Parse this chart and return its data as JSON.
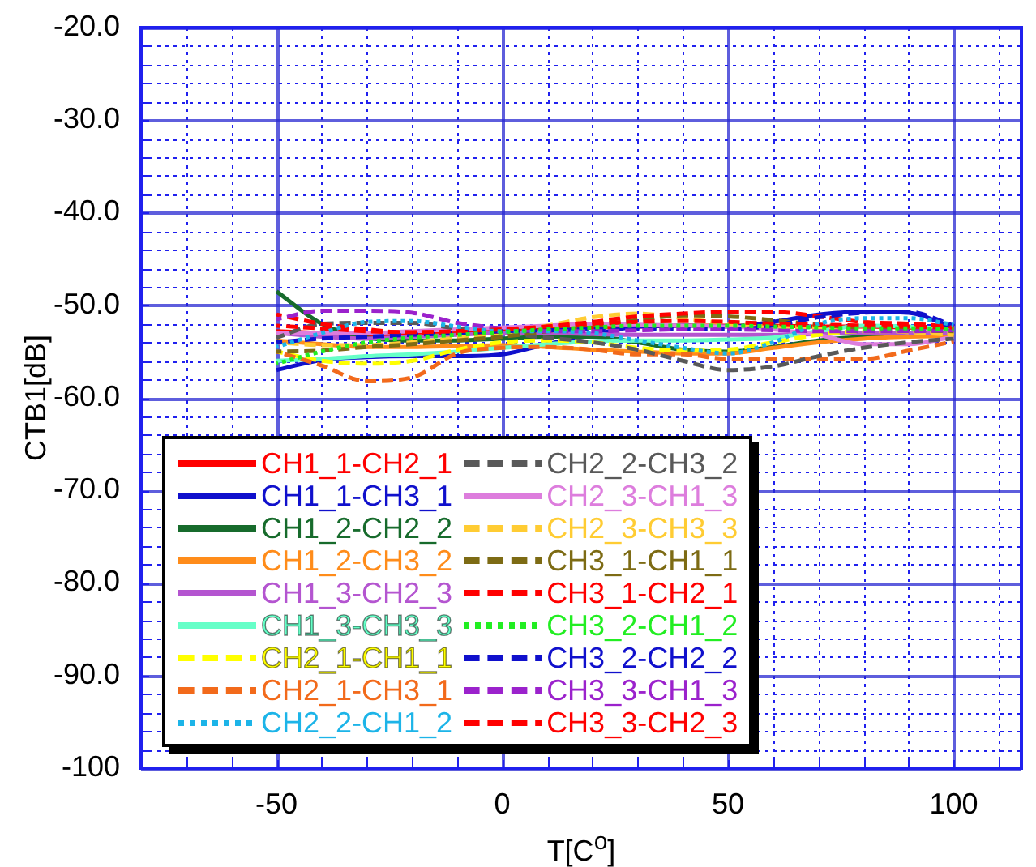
{
  "chart_data": {
    "type": "line",
    "xlabel": "T[C$^{o}$]",
    "ylabel": "CTB1[dB]",
    "x": [
      -50,
      -40,
      -30,
      -20,
      -10,
      0,
      10,
      20,
      30,
      40,
      50,
      60,
      70,
      80,
      90,
      100
    ],
    "xlim": [
      -80,
      115
    ],
    "xticks": [
      {
        "value": -70,
        "label": null
      },
      {
        "value": -60,
        "label": null
      },
      -50,
      {
        "value": -40,
        "label": null
      },
      {
        "value": -30,
        "label": null
      },
      {
        "value": -20,
        "label": null
      },
      {
        "value": -10,
        "label": null
      },
      0,
      {
        "value": 10,
        "label": null
      },
      {
        "value": 20,
        "label": null
      },
      {
        "value": 30,
        "label": null
      },
      {
        "value": 40,
        "label": null
      },
      50,
      {
        "value": 60,
        "label": null
      },
      {
        "value": 70,
        "label": null
      },
      {
        "value": 80,
        "label": null
      },
      {
        "value": 90,
        "label": null
      },
      100,
      {
        "value": 110,
        "label": null
      }
    ],
    "ylim": [
      -100,
      -20
    ],
    "yticks": [
      -100,
      {
        "value": -98,
        "label": null
      },
      {
        "value": -96,
        "label": null
      },
      {
        "value": -94,
        "label": null
      },
      {
        "value": -92,
        "label": null
      },
      {
        "value": -90,
        "label": "-90.0"
      },
      {
        "value": -88,
        "label": null
      },
      {
        "value": -86,
        "label": null
      },
      {
        "value": -84,
        "label": null
      },
      {
        "value": -82,
        "label": null
      },
      {
        "value": -80,
        "label": "-80.0"
      },
      {
        "value": -78,
        "label": null
      },
      {
        "value": -76,
        "label": null
      },
      {
        "value": -74,
        "label": null
      },
      {
        "value": -72,
        "label": null
      },
      {
        "value": -70,
        "label": "-70.0"
      },
      {
        "value": -68,
        "label": null
      },
      {
        "value": -66,
        "label": null
      },
      {
        "value": -64,
        "label": null
      },
      {
        "value": -62,
        "label": null
      },
      {
        "value": -60,
        "label": "-60.0"
      },
      {
        "value": -58,
        "label": null
      },
      {
        "value": -56,
        "label": null
      },
      {
        "value": -54,
        "label": null
      },
      {
        "value": -52,
        "label": null
      },
      {
        "value": -50,
        "label": "-50.0"
      },
      {
        "value": -48,
        "label": null
      },
      {
        "value": -46,
        "label": null
      },
      {
        "value": -44,
        "label": null
      },
      {
        "value": -42,
        "label": null
      },
      {
        "value": -40,
        "label": "-40.0"
      },
      {
        "value": -38,
        "label": null
      },
      {
        "value": -36,
        "label": null
      },
      {
        "value": -34,
        "label": null
      },
      {
        "value": -32,
        "label": null
      },
      {
        "value": -30,
        "label": "-30.0"
      },
      {
        "value": -28,
        "label": null
      },
      {
        "value": -26,
        "label": null
      },
      {
        "value": -24,
        "label": null
      },
      {
        "value": -22,
        "label": null
      },
      {
        "value": -20,
        "label": "-20.0"
      }
    ],
    "grid": true,
    "legend": "bottom left",
    "series": [
      {
        "name": "CH1_1-CH2_1",
        "color": "#ff0000",
        "line_style": "solid",
        "values": [
          -52.8,
          -53.0,
          -53.2,
          -53.2,
          -53.0,
          -52.8,
          -52.6,
          -52.4,
          -52.3,
          -52.2,
          -52.2,
          -52.2,
          -52.3,
          -52.3,
          -52.4,
          -52.5
        ]
      },
      {
        "name": "CH1_1-CH3_1",
        "color": "#1010cc",
        "line_style": "solid",
        "values": [
          -57.0,
          -55.9,
          -55.6,
          -55.5,
          -55.5,
          -55.3,
          -54.2,
          -53.2,
          -52.3,
          -52.2,
          -52.3,
          -51.8,
          -51.0,
          -50.7,
          -50.8,
          -52.5
        ]
      },
      {
        "name": "CH1_2-CH2_2",
        "color": "#176b2c",
        "line_style": "solid",
        "values": [
          -48.5,
          -52.0,
          -53.5,
          -53.8,
          -53.8,
          -53.6,
          -53.4,
          -53.4,
          -54.0,
          -54.8,
          -55.0,
          -54.5,
          -53.8,
          -53.4,
          -53.2,
          -53.2
        ]
      },
      {
        "name": "CH1_2-CH3_2",
        "color": "#ff8c1a",
        "line_style": "solid",
        "values": [
          -53.8,
          -54.2,
          -54.5,
          -54.5,
          -54.4,
          -54.3,
          -54.5,
          -54.8,
          -55.0,
          -55.2,
          -55.2,
          -54.6,
          -54.0,
          -53.6,
          -53.4,
          -53.3
        ]
      },
      {
        "name": "CH1_3-CH2_3",
        "color": "#b455d0",
        "line_style": "solid",
        "values": [
          -53.0,
          -53.4,
          -53.6,
          -53.4,
          -53.2,
          -53.0,
          -53.0,
          -53.1,
          -53.2,
          -53.2,
          -53.2,
          -53.2,
          -53.1,
          -53.0,
          -53.0,
          -53.0
        ]
      },
      {
        "name": "CH1_3-CH3_3",
        "color": "#66ffc8",
        "line_style": "solid",
        "values": [
          -56.0,
          -55.8,
          -55.5,
          -55.3,
          -55.0,
          -54.6,
          -54.2,
          -53.9,
          -53.8,
          -53.8,
          -53.7,
          -53.5,
          -52.8,
          -52.2,
          -52.3,
          -52.6
        ]
      },
      {
        "name": "CH2_1-CH1_1",
        "color": "#ffff00",
        "line_style": "dashed",
        "values": [
          -55.0,
          -56.0,
          -56.3,
          -56.0,
          -54.8,
          -54.0,
          -53.8,
          -54.0,
          -54.6,
          -54.9,
          -54.8,
          -54.0,
          -53.2,
          -52.8,
          -52.8,
          -53.0
        ]
      },
      {
        "name": "CH2_1-CH3_1",
        "color": "#f26a1b",
        "line_style": "dashed",
        "values": [
          -55.0,
          -56.5,
          -58.2,
          -57.8,
          -55.2,
          -54.6,
          -54.5,
          -54.8,
          -55.3,
          -55.3,
          -55.8,
          -55.8,
          -55.8,
          -55.8,
          -54.9,
          -53.9
        ]
      },
      {
        "name": "CH2_2-CH1_2",
        "color": "#1cb4e8",
        "line_style": "dotted",
        "values": [
          -54.5,
          -53.0,
          -51.8,
          -51.7,
          -52.3,
          -52.8,
          -52.8,
          -53.0,
          -53.8,
          -54.6,
          -55.2,
          -54.0,
          -52.0,
          -51.4,
          -51.4,
          -52.1
        ]
      },
      {
        "name": "CH2_2-CH3_2",
        "color": "#595959",
        "line_style": "dashed",
        "values": [
          -53.5,
          -52.0,
          -51.9,
          -51.9,
          -52.5,
          -53.0,
          -53.5,
          -54.0,
          -54.8,
          -56.0,
          -57.0,
          -56.6,
          -55.5,
          -54.6,
          -54.0,
          -53.6
        ]
      },
      {
        "name": "CH2_3-CH1_3",
        "color": "#dd7ddd",
        "line_style": "solid",
        "values": [
          -53.0,
          -53.0,
          -53.0,
          -52.8,
          -52.6,
          -52.4,
          -52.2,
          -52.0,
          -52.1,
          -52.2,
          -52.3,
          -52.6,
          -53.2,
          -54.2,
          -54.2,
          -53.4
        ]
      },
      {
        "name": "CH2_3-CH3_3",
        "color": "#ffcc33",
        "line_style": "dashed",
        "values": [
          -54.0,
          -54.3,
          -54.3,
          -54.0,
          -53.5,
          -53.0,
          -52.2,
          -51.3,
          -50.9,
          -51.4,
          -52.0,
          -52.3,
          -52.4,
          -52.6,
          -52.9,
          -53.2
        ]
      },
      {
        "name": "CH3_1-CH1_1",
        "color": "#7d6b14",
        "line_style": "dashed",
        "values": [
          -55.0,
          -54.9,
          -54.5,
          -54.2,
          -53.8,
          -53.4,
          -52.8,
          -52.2,
          -51.6,
          -51.1,
          -51.2,
          -51.6,
          -52.1,
          -52.5,
          -52.7,
          -52.8
        ]
      },
      {
        "name": "CH3_1-CH2_1",
        "color": "#ff0000",
        "line_style": "dashed",
        "values": [
          -51.0,
          -52.0,
          -52.6,
          -53.0,
          -53.0,
          -52.8,
          -52.3,
          -51.8,
          -51.2,
          -50.9,
          -50.7,
          -50.7,
          -51.2,
          -51.8,
          -52.0,
          -52.3
        ]
      },
      {
        "name": "CH3_2-CH1_2",
        "color": "#22ee22",
        "line_style": "dotted",
        "values": [
          -56.3,
          -55.0,
          -54.0,
          -53.5,
          -53.2,
          -52.9,
          -52.6,
          -52.4,
          -52.2,
          -52.2,
          -52.2,
          -52.3,
          -52.4,
          -52.5,
          -52.5,
          -52.6
        ]
      },
      {
        "name": "CH3_2-CH2_2",
        "color": "#1010cc",
        "line_style": "dashed",
        "values": [
          -54.0,
          -53.6,
          -53.4,
          -53.2,
          -53.0,
          -52.8,
          -52.7,
          -52.6,
          -52.5,
          -52.6,
          -52.6,
          -52.2,
          -51.3,
          -50.8,
          -50.7,
          -52.2
        ]
      },
      {
        "name": "CH3_3-CH1_3",
        "color": "#9b22cc",
        "line_style": "dashed",
        "values": [
          -51.5,
          -50.6,
          -50.6,
          -50.8,
          -51.9,
          -52.5,
          -52.8,
          -52.8,
          -52.7,
          -52.6,
          -52.6,
          -52.7,
          -52.8,
          -52.8,
          -52.8,
          -52.7
        ]
      },
      {
        "name": "CH3_3-CH2_3",
        "color": "#ff0000",
        "line_style": "dashed",
        "values": [
          -52.2,
          -52.5,
          -52.8,
          -52.9,
          -52.8,
          -52.6,
          -52.3,
          -52.0,
          -51.8,
          -51.7,
          -51.8,
          -52.0,
          -52.1,
          -52.2,
          -52.3,
          -52.4
        ]
      }
    ]
  }
}
